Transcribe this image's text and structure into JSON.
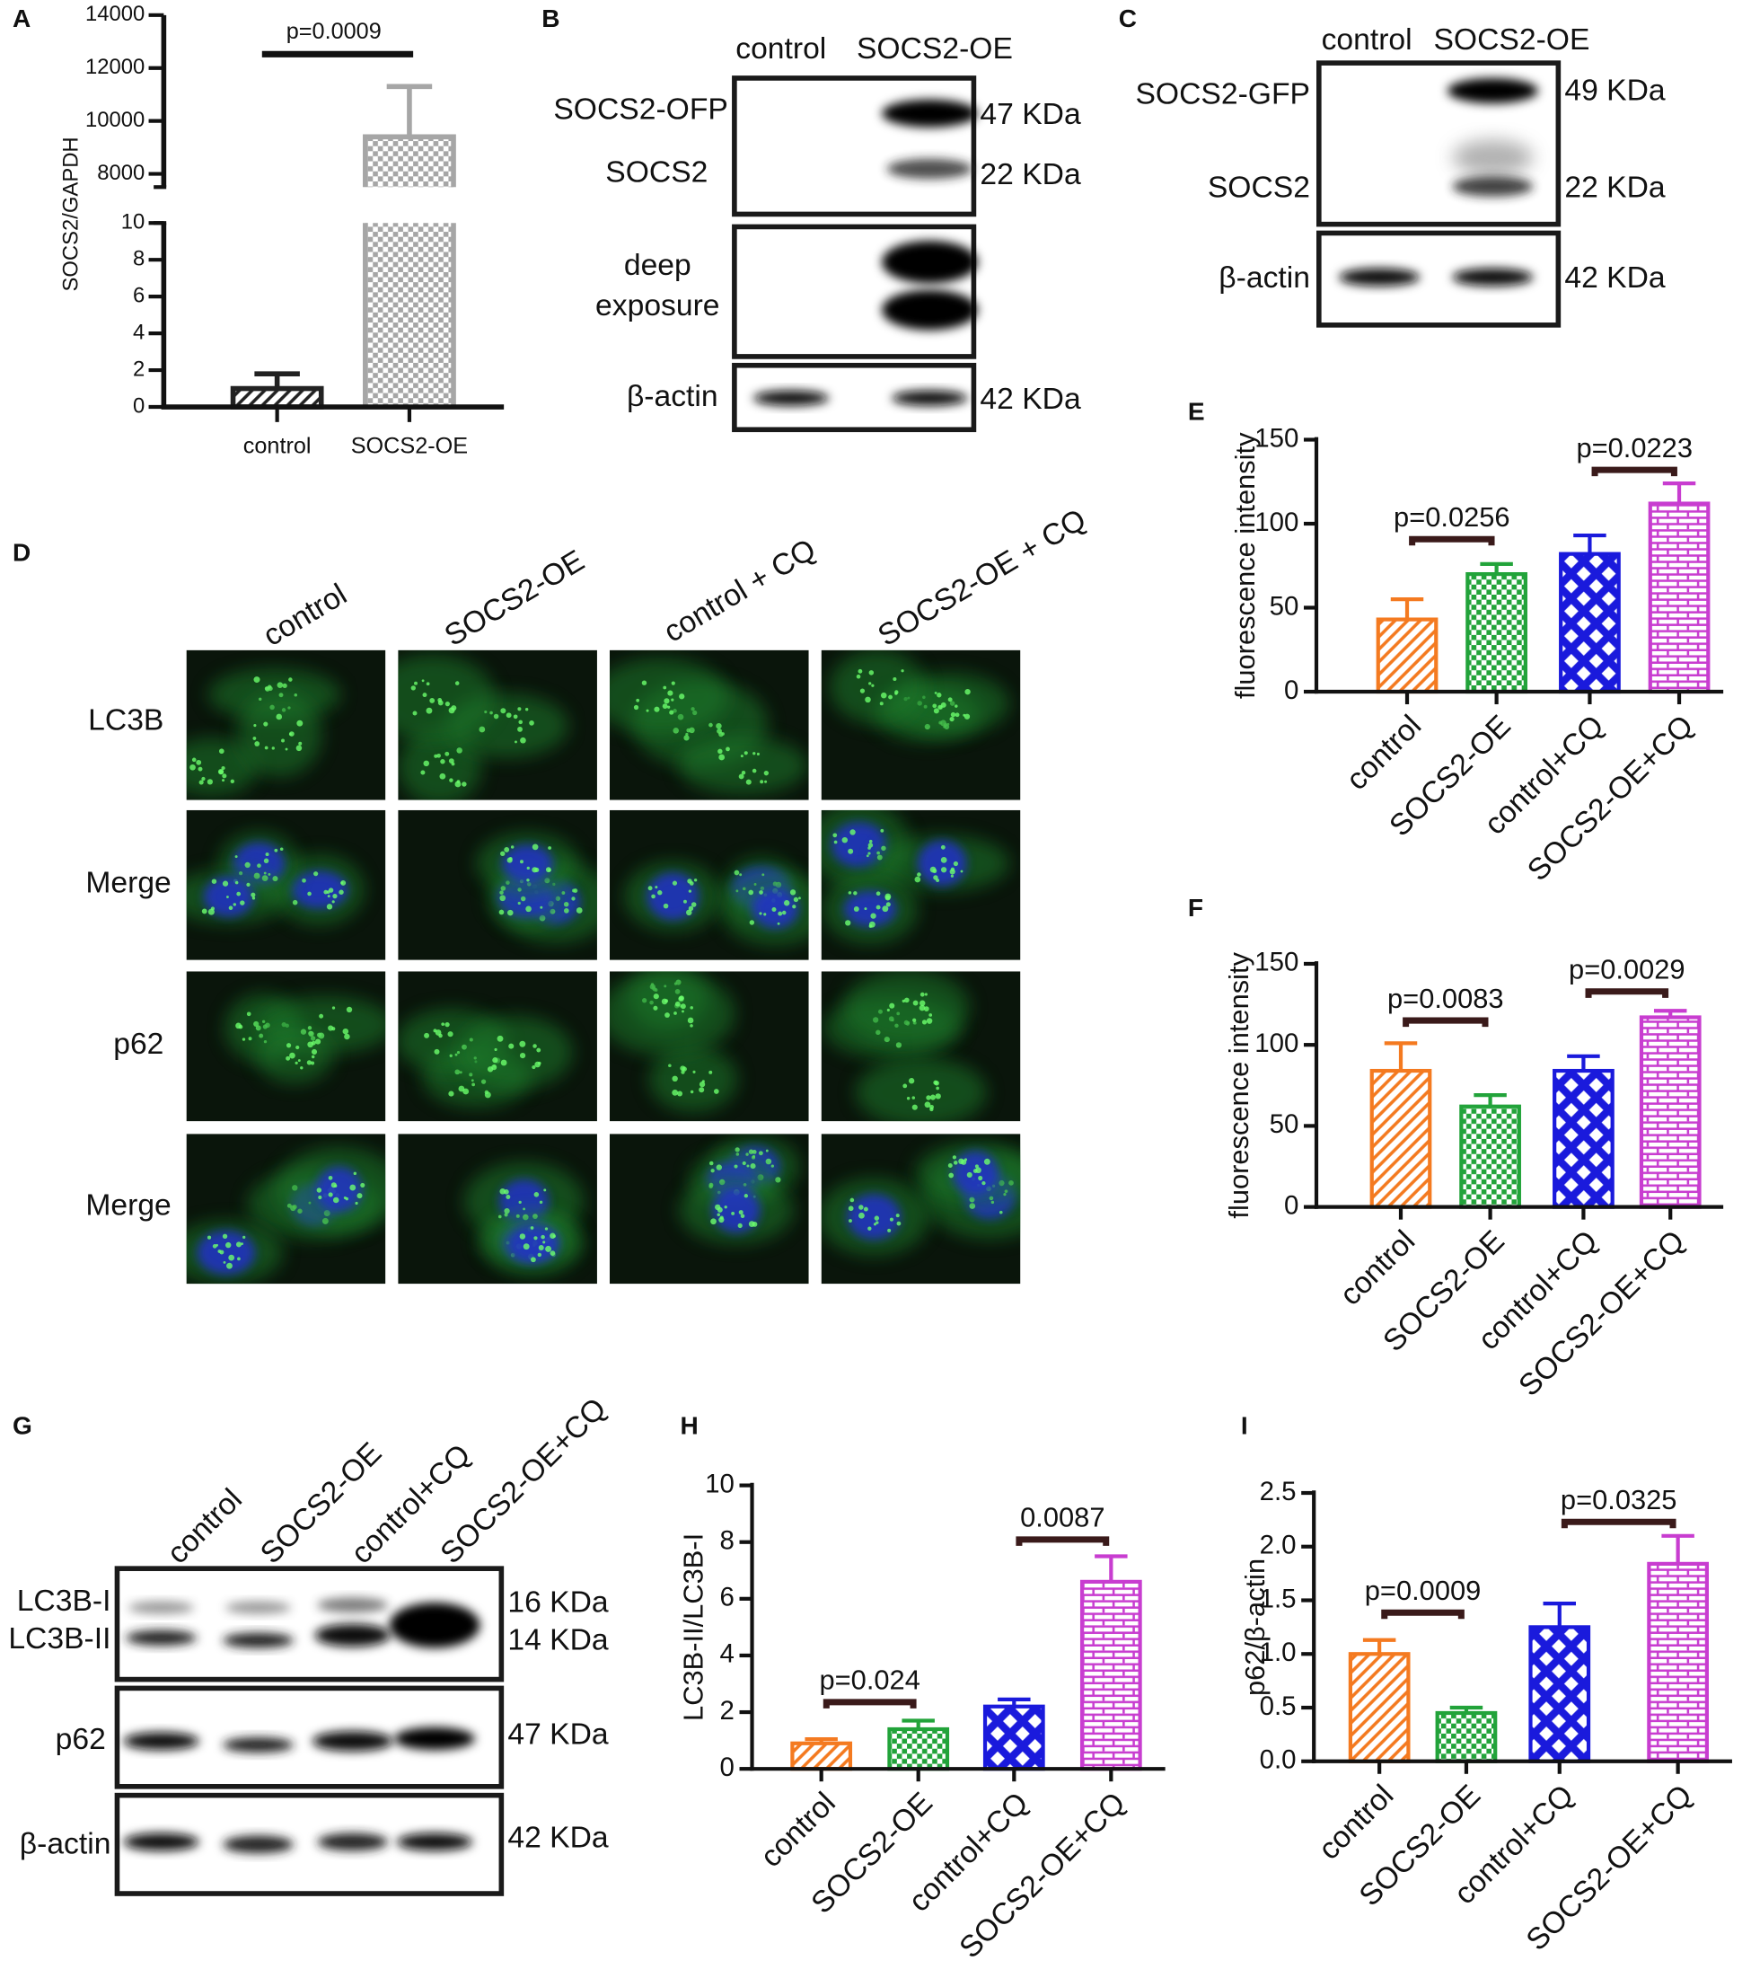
{
  "chart_data": [
    {
      "type": "broken-bar",
      "label": "A",
      "ylabel": "SOCS2/GAPDH",
      "categories": [
        "control",
        "SOCS2-OE"
      ],
      "values": [
        1,
        9400
      ],
      "errors": [
        0.8,
        1900
      ],
      "colors": [
        "#222222",
        "#a6a6a6"
      ],
      "y_segments": [
        {
          "ylim": [
            0,
            10
          ],
          "yticks": [
            0,
            2,
            4,
            6,
            8,
            10
          ]
        },
        {
          "ylim": [
            7500,
            14000
          ],
          "yticks": [
            8000,
            10000,
            12000,
            14000
          ]
        }
      ],
      "annotations": [
        "p=0.0009"
      ]
    },
    {
      "type": "bar",
      "label": "E",
      "ylabel": "fluorescence intensity",
      "categories": [
        "control",
        "SOCS2-OE",
        "control+CQ",
        "SOCS2-OE+CQ"
      ],
      "values": [
        43,
        70,
        82,
        112
      ],
      "errors": [
        12,
        6,
        11,
        12
      ],
      "colors": [
        "#f47a20",
        "#22a33a",
        "#1a1adc",
        "#c83dd0"
      ],
      "ylim": [
        0,
        150
      ],
      "yticks": [
        0,
        50,
        100,
        150
      ],
      "annotations": [
        "p=0.0256",
        "p=0.0223"
      ]
    },
    {
      "type": "bar",
      "label": "F",
      "ylabel": "fluorescence intensity",
      "categories": [
        "control",
        "SOCS2-OE",
        "control+CQ",
        "SOCS2-OE+CQ"
      ],
      "values": [
        84,
        62,
        84,
        117
      ],
      "errors": [
        17,
        7,
        9,
        4
      ],
      "colors": [
        "#f47a20",
        "#22a33a",
        "#1a1adc",
        "#c83dd0"
      ],
      "ylim": [
        0,
        150
      ],
      "yticks": [
        0,
        50,
        100,
        150
      ],
      "annotations": [
        "p=0.0083",
        "p=0.0029"
      ]
    },
    {
      "type": "bar",
      "label": "H",
      "ylabel": "LC3B-II/LC3B-I",
      "categories": [
        "control",
        "SOCS2-OE",
        "control+CQ",
        "SOCS2-OE+CQ"
      ],
      "values": [
        0.9,
        1.4,
        2.2,
        6.6
      ],
      "errors": [
        0.15,
        0.3,
        0.25,
        0.9
      ],
      "colors": [
        "#f47a20",
        "#22a33a",
        "#1a1adc",
        "#c83dd0"
      ],
      "ylim": [
        0,
        10
      ],
      "yticks": [
        0,
        2,
        4,
        6,
        8,
        10
      ],
      "annotations": [
        "p=0.024",
        "0.0087"
      ]
    },
    {
      "type": "bar",
      "label": "I",
      "ylabel": "p62/β-actin",
      "categories": [
        "control",
        "SOCS2-OE",
        "control+CQ",
        "SOCS2-OE+CQ"
      ],
      "values": [
        1.0,
        0.45,
        1.25,
        1.84
      ],
      "errors": [
        0.13,
        0.05,
        0.22,
        0.26
      ],
      "colors": [
        "#f47a20",
        "#22a33a",
        "#1a1adc",
        "#c83dd0"
      ],
      "ylim": [
        0,
        2.5
      ],
      "yticks": [
        {
          "value": 0,
          "label": "0.0"
        },
        0.5,
        {
          "value": 1,
          "label": "1.0"
        },
        1.5,
        {
          "value": 2,
          "label": "2.0"
        },
        2.5
      ],
      "annotations": [
        "p=0.0009",
        "p=0.0325"
      ]
    }
  ],
  "blots": [
    {
      "label": "B",
      "lanes": [
        "control",
        "SOCS2-OE"
      ],
      "rows": [
        "SOCS2-OFP",
        "SOCS2",
        "deep",
        "exposure",
        "β-actin"
      ],
      "sizes": [
        "47 KDa",
        "22 KDa",
        "42 KDa"
      ]
    },
    {
      "label": "C",
      "lanes": [
        "control",
        "SOCS2-OE"
      ],
      "rows": [
        "SOCS2-GFP",
        "SOCS2",
        "β-actin"
      ],
      "sizes": [
        "49 KDa",
        "22 KDa",
        "42 KDa"
      ]
    },
    {
      "label": "G",
      "lanes": [
        "control",
        "SOCS2-OE",
        "control+CQ",
        "SOCS2-OE+CQ"
      ],
      "rows": [
        "LC3B-I",
        "LC3B-II",
        "p62",
        "β-actin"
      ],
      "sizes": [
        "16 KDa",
        "14 KDa",
        "47 KDa",
        "42 KDa"
      ]
    }
  ],
  "microscopy": {
    "label": "D",
    "columns": [
      "control",
      "SOCS2-OE",
      "control + CQ",
      "SOCS2-OE + CQ"
    ],
    "rows": [
      "LC3B",
      "Merge",
      "p62",
      "Merge"
    ]
  }
}
